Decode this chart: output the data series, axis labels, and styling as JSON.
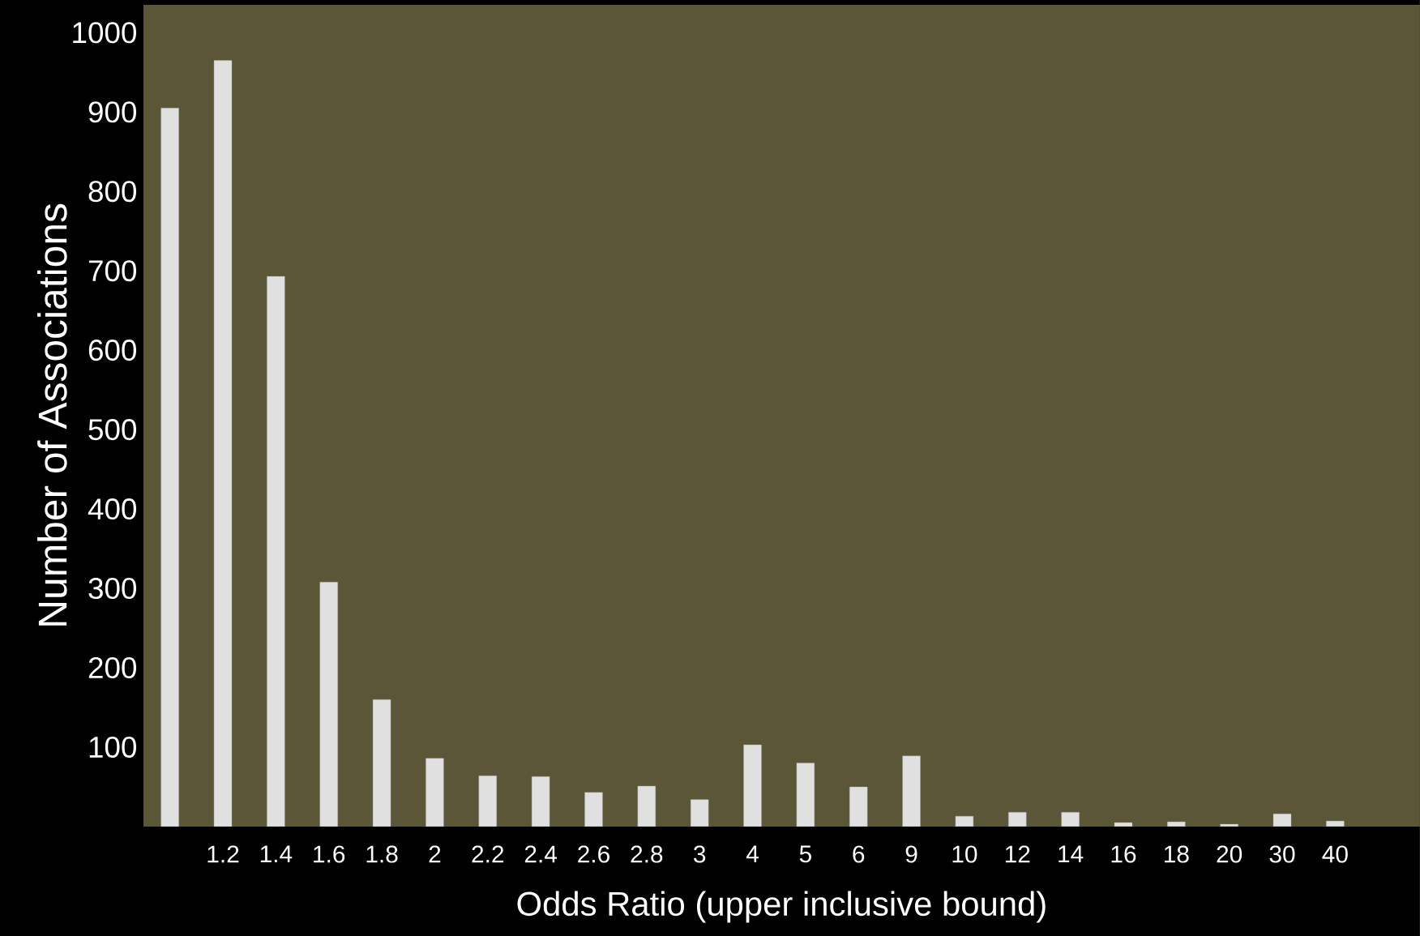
{
  "chart_data": {
    "type": "bar",
    "xlabel": "Odds Ratio (upper inclusive bound)",
    "ylabel": "Number of Associations",
    "categories": [
      null,
      "1.2",
      "1.4",
      "1.6",
      "1.8",
      "2",
      "2.2",
      "2.4",
      "2.6",
      "2.8",
      "3",
      "4",
      "5",
      "6",
      "9",
      "10",
      "12",
      "14",
      "16",
      "18",
      "20",
      "30",
      "40"
    ],
    "values": [
      905,
      965,
      693,
      308,
      160,
      86,
      64,
      63,
      43,
      51,
      34,
      103,
      80,
      50,
      89,
      13,
      18,
      18,
      5,
      6,
      3,
      16,
      7
    ],
    "color": "#e0e0e0",
    "ylim": [
      0,
      1035
    ],
    "yticks": [
      100,
      200,
      300,
      400,
      500,
      600,
      700,
      800,
      900,
      1000
    ],
    "grid": false
  }
}
